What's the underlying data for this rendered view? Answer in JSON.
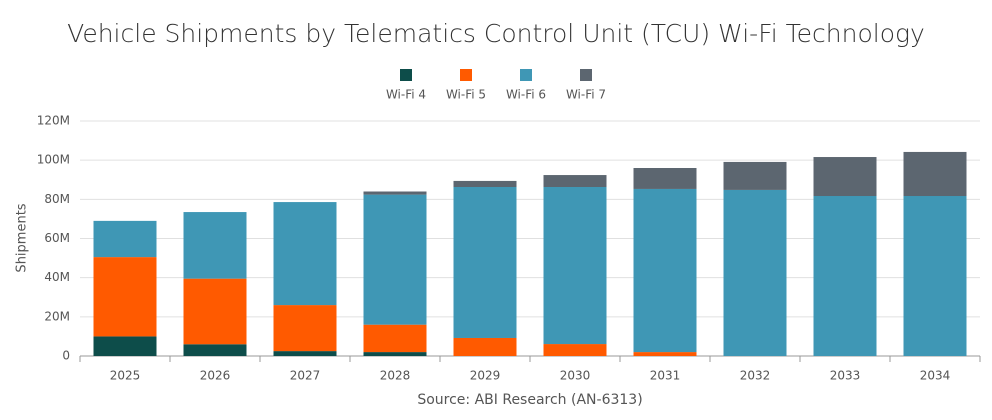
{
  "chart_data": {
    "type": "stacked_bar",
    "title": "Vehicle Shipments by Telematics Control Unit (TCU) Wi-Fi Technology",
    "y_label": "Shipments",
    "source": "Source: ABI Research (AN-6313)",
    "categories": [
      "2025",
      "2026",
      "2027",
      "2028",
      "2029",
      "2030",
      "2031",
      "2032",
      "2033",
      "2034"
    ],
    "series": [
      {
        "name": "Wi-Fi 4",
        "color": "#0d4d4a",
        "values": [
          10000000,
          6000000,
          2500000,
          2000000,
          0,
          0,
          0,
          0,
          0,
          0
        ]
      },
      {
        "name": "Wi-Fi 5",
        "color": "#ff5a00",
        "values": [
          40500000,
          33500000,
          23500000,
          14000000,
          9200000,
          6100000,
          2000000,
          0,
          0,
          0
        ]
      },
      {
        "name": "Wi-Fi 6",
        "color": "#3f97b5",
        "values": [
          18500000,
          34000000,
          52600000,
          66400000,
          77100000,
          80200000,
          83300000,
          84800000,
          81700000,
          81700000
        ]
      },
      {
        "name": "Wi-Fi 7",
        "color": "#5c6670",
        "values": [
          0,
          0,
          0,
          1600000,
          3100000,
          6100000,
          10700000,
          14300000,
          19900000,
          22500000
        ]
      }
    ],
    "ylim": [
      0,
      120000000
    ],
    "yticks": [
      {
        "value": 0,
        "label": "0"
      },
      {
        "value": 20000000,
        "label": "20M"
      },
      {
        "value": 40000000,
        "label": "40M"
      },
      {
        "value": 60000000,
        "label": "60M"
      },
      {
        "value": 80000000,
        "label": "80M"
      },
      {
        "value": 100000000,
        "label": "100M"
      },
      {
        "value": 120000000,
        "label": "120M"
      }
    ],
    "grid": true
  }
}
